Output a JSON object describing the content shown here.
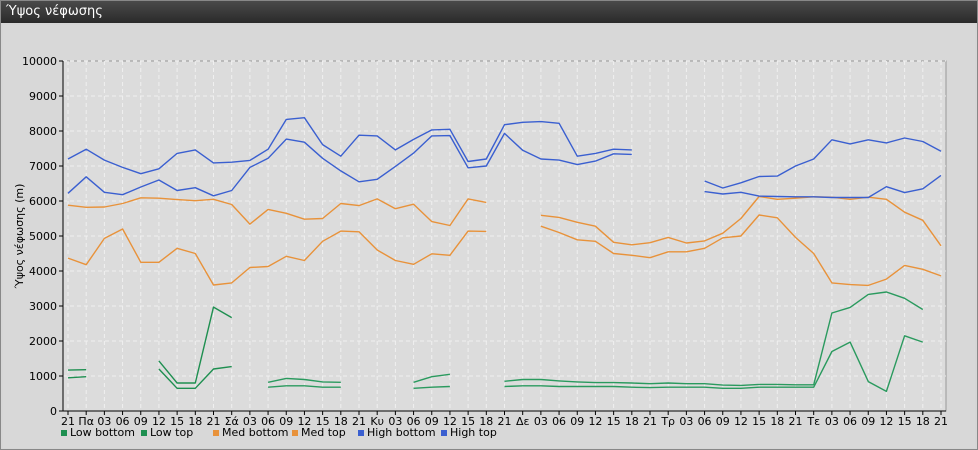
{
  "window": {
    "title": "Ύψος νέφωσης"
  },
  "chart_data": {
    "type": "line",
    "title": "",
    "xlabel": "",
    "ylabel": "Ύψος νέφωσης (m)",
    "ylim": [
      0,
      10000
    ],
    "yticks": [
      0,
      1000,
      2000,
      3000,
      4000,
      5000,
      6000,
      7000,
      8000,
      9000,
      10000
    ],
    "grid": true,
    "legend_position": "bottom-left",
    "categories": [
      "21",
      "Πα",
      "03",
      "06",
      "09",
      "12",
      "15",
      "18",
      "21",
      "Σά",
      "03",
      "06",
      "09",
      "12",
      "15",
      "18",
      "21",
      "Κυ",
      "03",
      "06",
      "09",
      "12",
      "15",
      "18",
      "21",
      "Δε",
      "03",
      "06",
      "09",
      "12",
      "15",
      "18",
      "21",
      "Τρ",
      "03",
      "06",
      "09",
      "12",
      "15",
      "18",
      "21",
      "Τε",
      "03",
      "06",
      "09",
      "12",
      "15",
      "18",
      "21"
    ],
    "series": [
      {
        "name": "Low bottom",
        "color": "#1e8f50",
        "values": [
          950,
          980,
          null,
          null,
          null,
          1200,
          650,
          650,
          1200,
          1270,
          null,
          null,
          null,
          null,
          null,
          null,
          null,
          null,
          null,
          null,
          null,
          null,
          null,
          null,
          null,
          null,
          null,
          null,
          null,
          null,
          null,
          null,
          null,
          null,
          null,
          null,
          null,
          null,
          null,
          null,
          null,
          null,
          null,
          null,
          null,
          null,
          null,
          null,
          null
        ]
      },
      {
        "name": "Low top",
        "color": "#1e8f50",
        "values": [
          1170,
          1180,
          null,
          null,
          null,
          1430,
          800,
          800,
          2970,
          2670,
          null,
          null,
          null,
          null,
          null,
          null,
          null,
          null,
          null,
          null,
          null,
          null,
          null,
          null,
          null,
          null,
          null,
          null,
          null,
          null,
          null,
          null,
          null,
          null,
          null,
          null,
          null,
          null,
          null,
          null,
          null,
          null,
          null,
          null,
          null,
          null,
          null,
          null,
          null
        ]
      },
      {
        "name": "Low bottom",
        "color": "#2a9a5e",
        "values": [
          null,
          null,
          null,
          null,
          null,
          null,
          null,
          null,
          null,
          null,
          null,
          680,
          720,
          720,
          680,
          680,
          null,
          null,
          null,
          650,
          680,
          700,
          null,
          null,
          700,
          720,
          720,
          700,
          700,
          700,
          700,
          680,
          670,
          680,
          680,
          680,
          650,
          650,
          680,
          680,
          680,
          680,
          1700,
          1970,
          840,
          560,
          2150,
          1970,
          null
        ]
      },
      {
        "name": "Low top",
        "color": "#2a9a5e",
        "values": [
          null,
          null,
          null,
          null,
          null,
          null,
          null,
          null,
          null,
          null,
          null,
          820,
          930,
          900,
          830,
          820,
          null,
          null,
          null,
          820,
          980,
          1050,
          null,
          null,
          850,
          900,
          900,
          860,
          830,
          810,
          810,
          800,
          780,
          800,
          780,
          780,
          740,
          730,
          760,
          760,
          750,
          750,
          2800,
          2960,
          3330,
          3400,
          3220,
          2900,
          null
        ]
      },
      {
        "name": "Med bottom",
        "color": "#e8923a",
        "values": [
          4370,
          4180,
          4930,
          5200,
          4250,
          4250,
          4650,
          4500,
          3600,
          3660,
          4100,
          4130,
          4420,
          4300,
          4850,
          5140,
          5120,
          4600,
          4300,
          4190,
          4490,
          4450,
          5140,
          5130,
          null,
          null,
          5280,
          5100,
          4890,
          4850,
          4500,
          4450,
          4380,
          4550,
          4550,
          4650,
          4950,
          5000,
          5600,
          5520,
          4960,
          4500,
          3660,
          3610,
          3590,
          3770,
          4160,
          4050,
          3860
        ]
      },
      {
        "name": "Med top",
        "color": "#e8923a",
        "values": [
          5880,
          5820,
          5830,
          5930,
          6090,
          6080,
          6040,
          6010,
          6050,
          5900,
          5340,
          5760,
          5650,
          5480,
          5500,
          5930,
          5870,
          6060,
          5780,
          5910,
          5410,
          5300,
          6060,
          5960,
          null,
          null,
          5590,
          5530,
          5390,
          5280,
          4820,
          4750,
          4810,
          4960,
          4800,
          4860,
          5080,
          5500,
          6130,
          6050,
          6080,
          6120,
          6110,
          6050,
          6110,
          6050,
          5680,
          5450,
          4720
        ]
      },
      {
        "name": "High bottom",
        "color": "#3a5fd0",
        "values": [
          6220,
          6690,
          6250,
          6180,
          6400,
          6600,
          6300,
          6380,
          6150,
          6300,
          6960,
          7220,
          7770,
          7680,
          7220,
          6860,
          6550,
          6620,
          6990,
          7370,
          7860,
          7870,
          6950,
          7000,
          7930,
          7450,
          7200,
          7170,
          7040,
          7140,
          7350,
          7330,
          null,
          null,
          null,
          6270,
          6200,
          6250,
          6140,
          6130,
          6120,
          6120,
          6100,
          6100,
          6100,
          6410,
          6240,
          6350,
          6730
        ]
      },
      {
        "name": "High top",
        "color": "#3a5fd0",
        "values": [
          7200,
          7480,
          7170,
          6960,
          6780,
          6920,
          7360,
          7460,
          7090,
          7110,
          7160,
          7480,
          8330,
          8380,
          7610,
          7280,
          7880,
          7860,
          7460,
          7760,
          8030,
          8050,
          7130,
          7200,
          8180,
          8250,
          8270,
          8220,
          7280,
          7360,
          7480,
          7460,
          null,
          null,
          null,
          6570,
          6370,
          6520,
          6700,
          6710,
          7000,
          7200,
          7750,
          7630,
          7750,
          7660,
          7800,
          7700,
          7420
        ]
      }
    ],
    "legend": [
      {
        "label": "Low bottom",
        "color": "#1e8f50"
      },
      {
        "label": "Low top",
        "color": "#1e8f50"
      },
      {
        "label": "Med bottom",
        "color": "#e8923a"
      },
      {
        "label": "Med top",
        "color": "#e8923a"
      },
      {
        "label": "High bottom",
        "color": "#3a5fd0"
      },
      {
        "label": "High top",
        "color": "#3a5fd0"
      }
    ]
  }
}
